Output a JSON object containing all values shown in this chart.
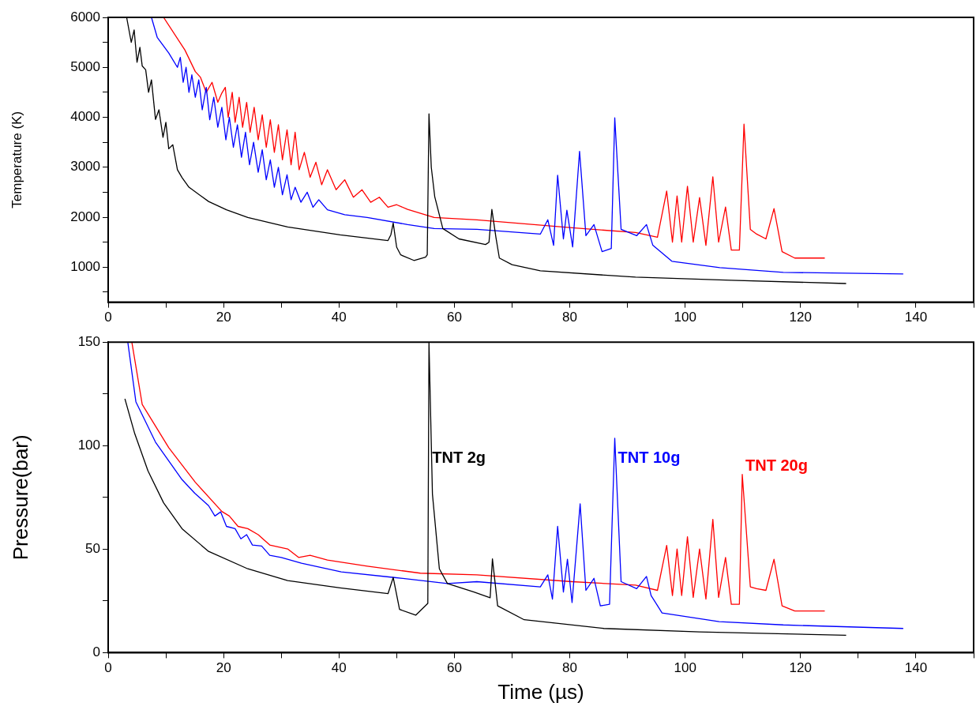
{
  "chart_data": [
    {
      "type": "line",
      "ylabel": "Temperature (K)",
      "xlim": [
        0,
        150
      ],
      "ylim": [
        300,
        6000
      ],
      "xticks": [
        0,
        {
          "value": 10,
          "label": null
        },
        20,
        {
          "value": 30,
          "label": null
        },
        40,
        {
          "value": 50,
          "label": null
        },
        60,
        {
          "value": 70,
          "label": null
        },
        80,
        {
          "value": 90,
          "label": null
        },
        100,
        {
          "value": 110,
          "label": null
        },
        120,
        {
          "value": 130,
          "label": null
        },
        140,
        {
          "value": 150,
          "label": null
        }
      ],
      "yticks": [
        {
          "value": 500,
          "label": null
        },
        1000,
        {
          "value": 1500,
          "label": null
        },
        2000,
        {
          "value": 2500,
          "label": null
        },
        3000,
        {
          "value": 3500,
          "label": null
        },
        4000,
        {
          "value": 4500,
          "label": null
        },
        5000,
        {
          "value": 5500,
          "label": null
        },
        6000
      ],
      "marker": "none",
      "legend": false,
      "series": [
        {
          "color": "#000000",
          "x": [
            3.2,
            4.0,
            4.5,
            5.0,
            5.5,
            5.9,
            6.5,
            7.0,
            7.5,
            8.2,
            8.8,
            9.5,
            10.0,
            10.5,
            11.2,
            12.0,
            12.8,
            14,
            17.4,
            20.5,
            24.2,
            31.1,
            40.2,
            48.5,
            49.0,
            49.4,
            50.0,
            50.7,
            53,
            55.0,
            55.3,
            55.6,
            56.0,
            56.6,
            58,
            60.8,
            65.4,
            66.0,
            66.5,
            67.2,
            67.8,
            70,
            74.9,
            91.4,
            108,
            127.9
          ],
          "values": [
            6000,
            5500,
            5750,
            5100,
            5400,
            5027,
            4950,
            4500,
            4750,
            3958,
            4150,
            3600,
            3900,
            3370,
            3450,
            2950,
            2794,
            2600,
            2315,
            2150,
            1996,
            1805,
            1646,
            1534,
            1650,
            1885,
            1400,
            1247,
            1135,
            1200,
            1247,
            4070,
            3000,
            2411,
            1773,
            1566,
            1454,
            1500,
            2156,
            1600,
            1183,
            1050,
            928,
            800,
            737,
            673
          ]
        },
        {
          "color": "#0000ff",
          "x": [
            7.5,
            8.5,
            10.5,
            12,
            12.5,
            13,
            13.5,
            14,
            14.5,
            15.1,
            15.7,
            16.3,
            17,
            17.6,
            18.3,
            19,
            19.7,
            20.4,
            21,
            21.7,
            22.4,
            23.1,
            23.8,
            24.5,
            25.2,
            26,
            26.7,
            27.4,
            28.1,
            28.8,
            29.5,
            30.2,
            31,
            31.7,
            32.4,
            33.4,
            34.5,
            35.5,
            36.5,
            38,
            41,
            44.9,
            51.9,
            56.5,
            63.9,
            74.9,
            76.2,
            77.2,
            77.9,
            78.9,
            79.5,
            80.5,
            81.7,
            82.8,
            84.2,
            85.6,
            87.2,
            87.8,
            88.9,
            91.6,
            93.3,
            94.4,
            97.7,
            106,
            117,
            137.8
          ],
          "values": [
            6000,
            5600,
            5287,
            5000,
            5200,
            4700,
            5000,
            4500,
            4850,
            4400,
            4750,
            4150,
            4600,
            3950,
            4400,
            3800,
            4200,
            3550,
            4000,
            3400,
            3850,
            3200,
            3700,
            3050,
            3500,
            2900,
            3350,
            2750,
            3150,
            2600,
            3000,
            2450,
            2850,
            2350,
            2600,
            2300,
            2500,
            2200,
            2350,
            2150,
            2050,
            1996,
            1853,
            1773,
            1757,
            1662,
            1949,
            1438,
            2842,
            1566,
            2140,
            1406,
            3320,
            1630,
            1853,
            1311,
            1374,
            3990,
            1757,
            1630,
            1853,
            1438,
            1119,
            991,
            896,
            864
          ]
        },
        {
          "color": "#ff0000",
          "x": [
            9.6,
            13.3,
            15.1,
            16,
            17,
            18,
            19,
            19.7,
            20.3,
            20.8,
            21.5,
            22,
            22.7,
            23.3,
            24,
            24.6,
            25.3,
            26,
            26.7,
            27.4,
            28.1,
            28.8,
            29.5,
            30.2,
            31,
            31.7,
            32.4,
            33.1,
            34,
            35,
            36,
            37,
            38,
            39.5,
            41,
            42.5,
            44,
            45.5,
            47,
            48.5,
            50,
            51.9,
            56.5,
            63.9,
            80.4,
            91.4,
            95.2,
            96.8,
            97.8,
            98.6,
            99.4,
            100.4,
            101.4,
            102.5,
            103.6,
            104.8,
            105.8,
            107,
            108,
            109.4,
            110.2,
            111.3,
            112.4,
            114,
            115.4,
            116.8,
            119,
            124.2
          ],
          "values": [
            6000,
            5346,
            4915,
            4800,
            4500,
            4700,
            4300,
            4485,
            4600,
            4000,
            4500,
            3900,
            4400,
            3800,
            4300,
            3700,
            4200,
            3550,
            4050,
            3400,
            3950,
            3300,
            3850,
            3150,
            3750,
            3050,
            3700,
            2950,
            3300,
            2800,
            3100,
            2650,
            2950,
            2550,
            2750,
            2400,
            2550,
            2300,
            2400,
            2200,
            2250,
            2156,
            1996,
            1949,
            1789,
            1693,
            1598,
            2523,
            1502,
            2427,
            1502,
            2619,
            1502,
            2395,
            1438,
            2810,
            1502,
            2204,
            1342,
            1342,
            3863,
            1757,
            1662,
            1566,
            2172,
            1311,
            1183,
            1183
          ]
        }
      ]
    },
    {
      "type": "line",
      "ylabel": "Pressure(bar)",
      "xlabel": "Time (µs)",
      "xlim": [
        0,
        150
      ],
      "ylim": [
        0,
        150
      ],
      "xticks": [
        0,
        {
          "value": 10,
          "label": null
        },
        20,
        {
          "value": 30,
          "label": null
        },
        40,
        {
          "value": 50,
          "label": null
        },
        60,
        {
          "value": 70,
          "label": null
        },
        80,
        {
          "value": 90,
          "label": null
        },
        100,
        {
          "value": 110,
          "label": null
        },
        120,
        {
          "value": 130,
          "label": null
        },
        140,
        {
          "value": 150,
          "label": null
        }
      ],
      "yticks": [
        0,
        {
          "value": 25,
          "label": null
        },
        50,
        {
          "value": 75,
          "label": null
        },
        100,
        {
          "value": 125,
          "label": null
        },
        150
      ],
      "marker": "none",
      "legend": false,
      "series": [
        {
          "name": "TNT 2g",
          "color": "#000000",
          "x": [
            2.9,
            4.6,
            6.9,
            9.6,
            12.8,
            17.4,
            24.2,
            31.1,
            40.2,
            48.5,
            49.4,
            50.5,
            53.3,
            55.4,
            55.6,
            56.2,
            57.4,
            58.8,
            63.4,
            66.2,
            66.6,
            67.5,
            72.1,
            85.9,
            102.5,
            127.9
          ],
          "values": [
            122.6,
            105.8,
            87.8,
            72.4,
            59.9,
            48.9,
            40.5,
            34.8,
            31.3,
            28.5,
            36.3,
            20.9,
            18.1,
            23.8,
            150,
            76.6,
            40.5,
            33.4,
            29.3,
            26.5,
            45.3,
            22.6,
            15.9,
            11.7,
            10,
            8.4
          ]
        },
        {
          "name": "TNT 10g",
          "color": "#0000ff",
          "x": [
            3.4,
            4.8,
            8.2,
            12.8,
            15,
            17.4,
            18.5,
            19.5,
            20.5,
            22,
            23,
            24,
            25,
            26.6,
            28,
            30,
            33.5,
            40.4,
            49.6,
            58.8,
            63.9,
            74.9,
            76.2,
            77,
            77.9,
            78.9,
            79.6,
            80.4,
            81.8,
            82.8,
            84.2,
            85.3,
            86.9,
            87.8,
            88.9,
            91.6,
            93.3,
            94.1,
            96,
            105.9,
            117,
            137.8
          ],
          "values": [
            150,
            121.2,
            101.7,
            83.6,
            77,
            71,
            66,
            68,
            61,
            59.9,
            55,
            57,
            52,
            51.5,
            47,
            46,
            43.2,
            39,
            36.3,
            33.4,
            34.3,
            31.8,
            37.6,
            25.9,
            61,
            29.3,
            45.1,
            24.2,
            71.9,
            30.1,
            35.9,
            22.6,
            23.4,
            103.6,
            34.3,
            30.9,
            36.8,
            27.6,
            19.2,
            15,
            13.4,
            11.7
          ]
        },
        {
          "name": "TNT 20g",
          "color": "#ff0000",
          "x": [
            4.1,
            5.9,
            10.5,
            15.1,
            19.7,
            21,
            22.5,
            24.2,
            26,
            28,
            31.1,
            33,
            35,
            38,
            44.9,
            54.1,
            63.9,
            80.4,
            91.4,
            95.2,
            96.8,
            97.8,
            98.6,
            99.4,
            100.4,
            101.4,
            102.5,
            103.6,
            104.8,
            105.8,
            107,
            108,
            109.4,
            109.9,
            111.3,
            112.4,
            114,
            115.4,
            116.8,
            119,
            124.2
          ],
          "values": [
            150,
            119.9,
            99,
            82.3,
            68.2,
            66,
            61,
            59.9,
            57,
            52,
            50.1,
            46,
            47,
            44.7,
            41.8,
            38.4,
            37.6,
            34.3,
            32.6,
            30.1,
            51.8,
            27.6,
            50.1,
            27.6,
            56,
            26.7,
            50.1,
            25.9,
            64.4,
            26.7,
            46,
            23.4,
            23.4,
            86.1,
            31.8,
            30.9,
            30.1,
            45.1,
            22.6,
            20.1,
            20.1
          ]
        }
      ]
    }
  ]
}
